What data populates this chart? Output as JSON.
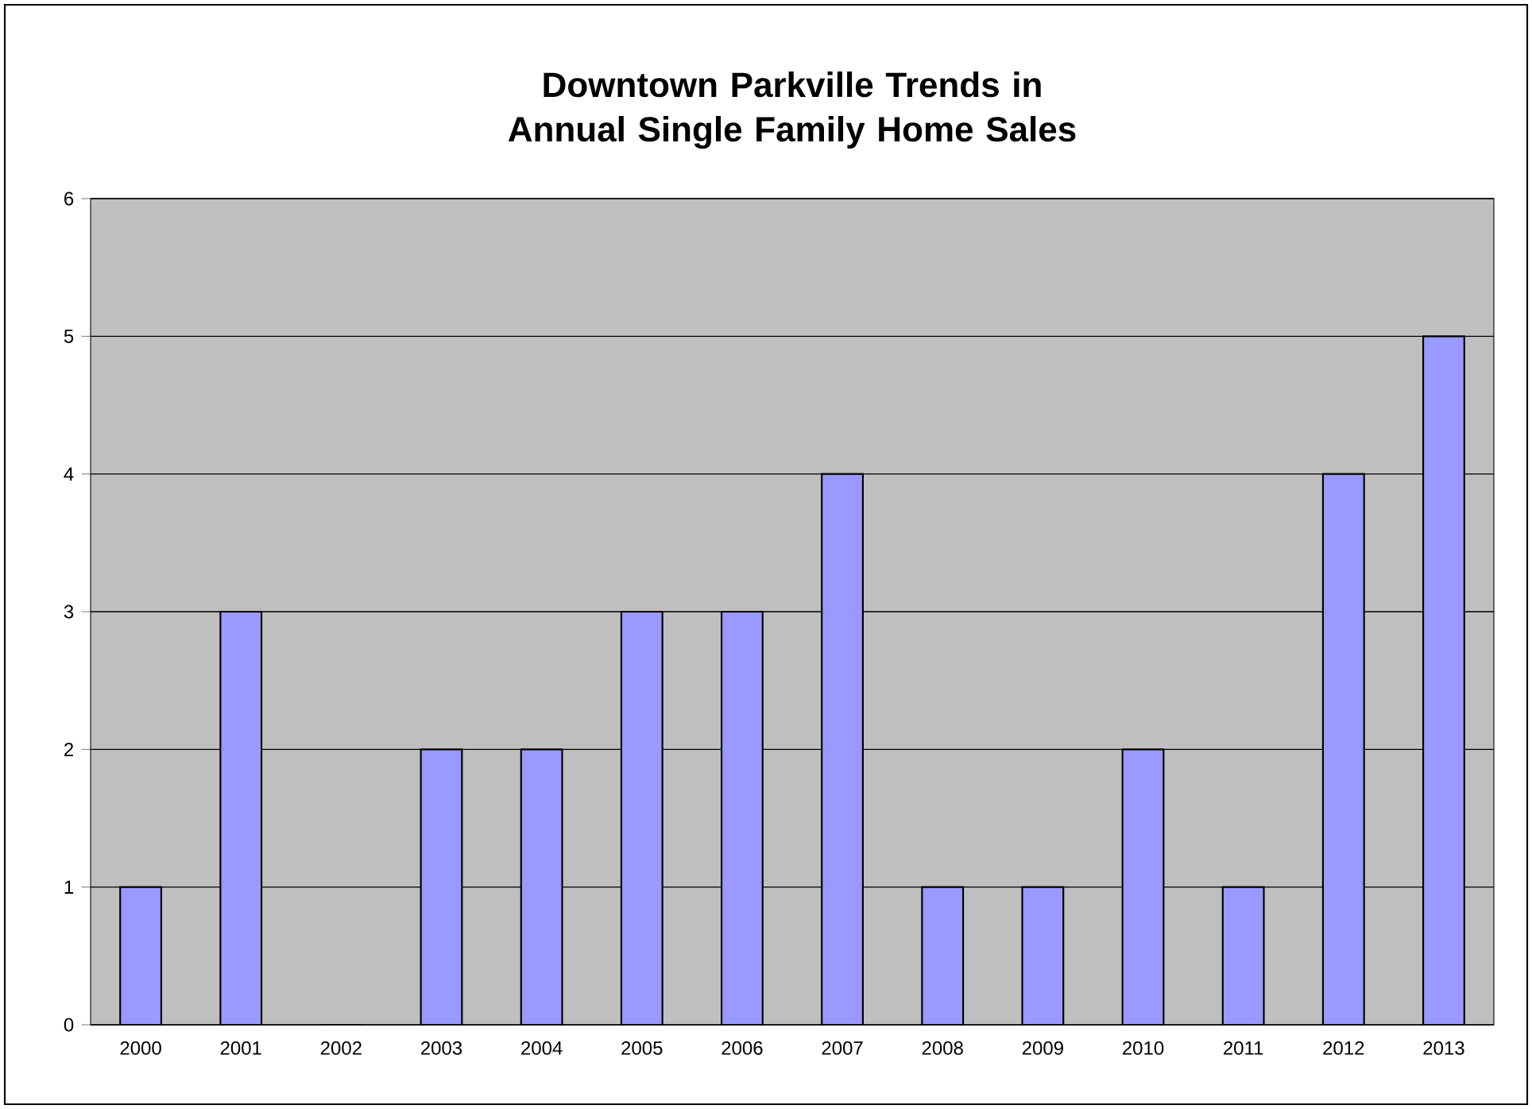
{
  "chart_data": {
    "type": "bar",
    "title": "Downtown Parkville Trends in Annual Single Family Home Sales",
    "categories": [
      "2000",
      "2001",
      "2002",
      "2003",
      "2004",
      "2005",
      "2006",
      "2007",
      "2008",
      "2009",
      "2010",
      "2011",
      "2012",
      "2013"
    ],
    "values": [
      1,
      3,
      0,
      2,
      2,
      3,
      3,
      4,
      1,
      1,
      2,
      1,
      4,
      5
    ],
    "color": "#9999ff",
    "ylim": [
      0,
      6
    ],
    "yticks": [
      0,
      1,
      2,
      3,
      4,
      5,
      6
    ],
    "grid": "y"
  }
}
